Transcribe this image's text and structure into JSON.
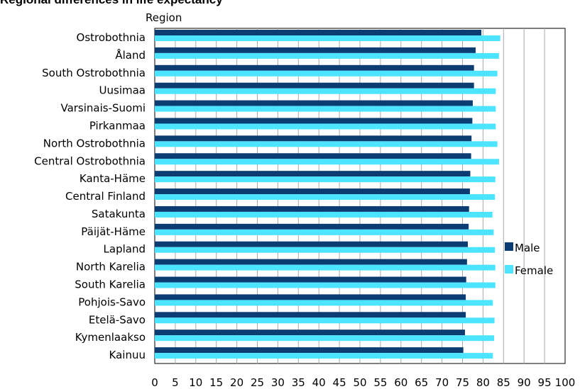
{
  "chart_data": {
    "type": "bar",
    "orientation": "horizontal",
    "title": "Regional differences in life expectancy",
    "axis_title": "Region",
    "categories": [
      "Ostrobothnia",
      "Åland",
      "South Ostrobothnia",
      "Uusimaa",
      "Varsinais-Suomi",
      "Pirkanmaa",
      "North Ostrobothnia",
      "Central Ostrobothnia",
      "Kanta-Häme",
      "Central Finland",
      "Satakunta",
      "Päijät-Häme",
      "Lapland",
      "North Karelia",
      "South Karelia",
      "Pohjois-Savo",
      "Etelä-Savo",
      "Kymenlaakso",
      "Kainuu"
    ],
    "series": [
      {
        "name": "Male",
        "color": "#0b3d73",
        "values": [
          79.6,
          78.2,
          77.8,
          77.8,
          77.5,
          77.4,
          77.2,
          77.1,
          76.9,
          76.8,
          76.6,
          76.5,
          76.3,
          76.1,
          75.9,
          75.8,
          75.8,
          75.6,
          75.2
        ]
      },
      {
        "name": "Female",
        "color": "#4de4ff",
        "values": [
          84.2,
          83.9,
          83.5,
          83.1,
          83.1,
          83.1,
          83.5,
          83.9,
          83.0,
          82.9,
          82.3,
          82.6,
          82.9,
          83.0,
          83.0,
          82.4,
          82.8,
          82.7,
          82.4
        ]
      }
    ],
    "xlim": [
      0,
      100
    ],
    "x_ticks": [
      0,
      5,
      10,
      15,
      20,
      25,
      30,
      35,
      40,
      45,
      50,
      55,
      60,
      65,
      70,
      75,
      80,
      85,
      90,
      95,
      100
    ],
    "grid": true,
    "legend_position": "right"
  }
}
